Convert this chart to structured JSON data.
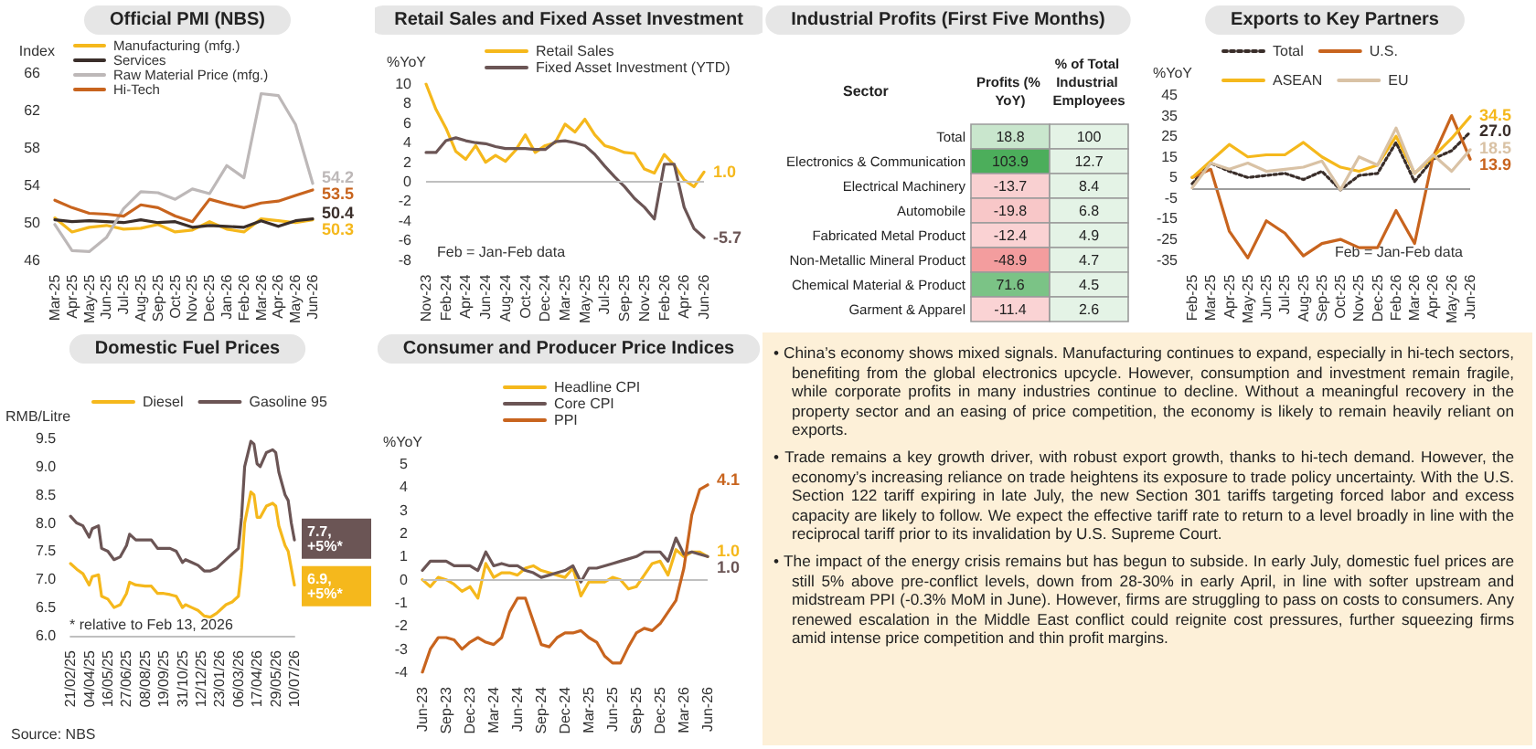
{
  "chart_data": [
    {
      "type": "line",
      "title": "Official PMI (NBS)",
      "ylabel": "Index",
      "legend": "top left",
      "marker": "none",
      "categories": [
        "Mar-25",
        "Apr-25",
        "May-25",
        "Jun-25",
        "Jul-25",
        "Aug-25",
        "Sep-25",
        "Oct-25",
        "Nov-25",
        "Dec-25",
        "Jan-26",
        "Feb-26",
        "Mar-26",
        "Apr-26",
        "May-26",
        "Jun-26"
      ],
      "ylim": [
        46,
        66
      ],
      "yticks": [
        46,
        50,
        54,
        58,
        62,
        66
      ],
      "series": [
        {
          "name": "Manufacturing (mfg.)",
          "color": "#f5b81c",
          "values": [
            50.5,
            49.0,
            49.5,
            49.7,
            49.3,
            49.4,
            49.8,
            49.0,
            49.2,
            50.1,
            49.3,
            49.0,
            50.4,
            50.2,
            50.0,
            50.3
          ],
          "value_labels": [
            null,
            null,
            null,
            null,
            null,
            null,
            null,
            null,
            null,
            null,
            null,
            null,
            null,
            null,
            null,
            "50.3"
          ]
        },
        {
          "name": "Services",
          "color": "#3a2e2a",
          "values": [
            50.3,
            50.1,
            50.2,
            50.1,
            50.0,
            50.3,
            50.0,
            50.1,
            49.5,
            49.7,
            49.6,
            49.5,
            50.2,
            49.6,
            50.2,
            50.4
          ],
          "value_labels": [
            null,
            null,
            null,
            null,
            null,
            null,
            null,
            null,
            null,
            null,
            null,
            null,
            null,
            null,
            null,
            "50.4"
          ]
        },
        {
          "name": "Raw Material Price (mfg.)",
          "color": "#bdb8b8",
          "values": [
            49.8,
            47.0,
            46.9,
            48.4,
            51.5,
            53.3,
            53.2,
            52.5,
            53.6,
            53.1,
            56.1,
            54.8,
            63.8,
            63.6,
            60.5,
            54.2
          ],
          "value_labels": [
            null,
            null,
            null,
            null,
            null,
            null,
            null,
            null,
            null,
            null,
            null,
            null,
            null,
            null,
            null,
            "54.2"
          ]
        },
        {
          "name": "Hi-Tech",
          "color": "#c8641e",
          "values": [
            52.4,
            51.6,
            51.0,
            50.9,
            50.7,
            51.9,
            51.6,
            50.7,
            50.1,
            52.5,
            52.0,
            51.6,
            52.1,
            52.3,
            52.9,
            53.5
          ],
          "value_labels": [
            null,
            null,
            null,
            null,
            null,
            null,
            null,
            null,
            null,
            null,
            null,
            null,
            null,
            null,
            null,
            "53.5"
          ]
        }
      ]
    },
    {
      "type": "line",
      "title": "Retail Sales and Fixed Asset Investment",
      "ylabel": "%YoY",
      "legend": "top",
      "marker": "none",
      "categories": [
        "Nov-23",
        null,
        "Feb-24",
        null,
        "Apr-24",
        null,
        "Jun-24",
        null,
        "Aug-24",
        null,
        "Oct-24",
        null,
        "Dec-24",
        null,
        "Mar-25",
        null,
        "May-25",
        null,
        "Jul-25",
        null,
        "Sep-25",
        null,
        "Nov-25",
        null,
        "Feb-26",
        null,
        "Apr-26",
        null,
        "Jun-26"
      ],
      "ylim": [
        -8,
        10
      ],
      "yticks": [
        -8,
        -6,
        -4,
        -2,
        0,
        2,
        4,
        6,
        8,
        10
      ],
      "ref_lines": [
        {
          "axis": "y",
          "value": 0,
          "label": null,
          "color": "#bfbfbf"
        }
      ],
      "annotations": [
        "Feb = Jan-Feb data"
      ],
      "series": [
        {
          "name": "Retail Sales",
          "color": "#f5b81c",
          "values": [
            10.0,
            7.4,
            5.5,
            3.1,
            2.3,
            3.7,
            2.0,
            2.7,
            2.1,
            3.2,
            4.8,
            3.0,
            3.7,
            4.0,
            5.9,
            5.1,
            6.4,
            4.8,
            3.7,
            3.4,
            3.0,
            2.9,
            1.3,
            0.9,
            2.8,
            1.7,
            0.2,
            -0.5,
            1.0
          ],
          "value_labels": [
            null,
            null,
            null,
            null,
            null,
            null,
            null,
            null,
            null,
            null,
            null,
            null,
            null,
            null,
            null,
            null,
            null,
            null,
            null,
            null,
            null,
            null,
            null,
            null,
            null,
            null,
            null,
            null,
            "1.0"
          ]
        },
        {
          "name": "Fixed Asset Investment (YTD)",
          "color": "#6b5555",
          "values": [
            3.0,
            3.0,
            4.2,
            4.5,
            4.2,
            4.0,
            3.9,
            3.6,
            3.4,
            3.4,
            3.4,
            3.3,
            3.3,
            4.1,
            4.2,
            4.0,
            3.7,
            2.8,
            1.6,
            0.5,
            -0.5,
            -1.7,
            -2.6,
            -3.8,
            1.8,
            1.8,
            -2.6,
            -4.8,
            -5.7
          ],
          "value_labels": [
            null,
            null,
            null,
            null,
            null,
            null,
            null,
            null,
            null,
            null,
            null,
            null,
            null,
            null,
            null,
            null,
            null,
            null,
            null,
            null,
            null,
            null,
            null,
            null,
            null,
            null,
            null,
            null,
            "-5.7"
          ]
        }
      ]
    },
    {
      "type": "heatmap",
      "title": "Industrial Profits (First Five Months)",
      "ylabel": "Sector",
      "data_labels": true,
      "categories": [
        "Profits (% YoY)",
        "% of Total Industrial Employees"
      ],
      "y_categories": [
        "Total",
        "Electronics & Communication",
        "Electrical Machinery",
        "Automobile",
        "Fabricated Metal Product",
        "Non-Metallic Mineral Product",
        "Chemical Material & Product",
        "Garment & Apparel"
      ],
      "cells": [
        [
          18.8,
          100
        ],
        [
          103.9,
          12.7
        ],
        [
          -13.7,
          8.4
        ],
        [
          -19.8,
          6.8
        ],
        [
          -12.4,
          4.9
        ],
        [
          -48.9,
          4.7
        ],
        [
          71.6,
          4.5
        ],
        [
          -11.4,
          2.6
        ]
      ]
    },
    {
      "type": "line",
      "title": "Exports to Key Partners",
      "ylabel": "%YoY",
      "legend": "top",
      "marker": "none",
      "categories": [
        "Feb-25",
        "Mar-25",
        "Apr-25",
        "May-25",
        "Jun-25",
        "Jul-25",
        "Aug-25",
        "Sep-25",
        "Oct-25",
        "Nov-25",
        "Dec-25",
        "Feb-26",
        "Mar-26",
        "Apr-26",
        "May-26",
        "Jun-26"
      ],
      "ylim": [
        -35,
        45
      ],
      "yticks": [
        -35,
        -25,
        -15,
        -5,
        5,
        15,
        25,
        35,
        45
      ],
      "ref_lines": [
        {
          "axis": "y",
          "value": 0,
          "label": null,
          "color": "#9e9e9e"
        }
      ],
      "annotations": [
        "Feb = Jan-Feb data"
      ],
      "series": [
        {
          "name": "Total",
          "color": "#3a2e2a",
          "line_style": "dotted",
          "values": [
            2,
            12,
            8,
            5,
            6,
            7,
            4,
            8,
            -1,
            6,
            7,
            22,
            3,
            14,
            18,
            27.0
          ],
          "value_labels": [
            null,
            null,
            null,
            null,
            null,
            null,
            null,
            null,
            null,
            null,
            null,
            null,
            null,
            null,
            null,
            "27.0"
          ]
        },
        {
          "name": "U.S.",
          "color": "#c8641e",
          "values": [
            5,
            9,
            -21,
            -34,
            -16,
            -22,
            -33,
            -27,
            -25,
            -29,
            -29,
            -11,
            -27,
            15,
            35,
            13.9
          ],
          "value_labels": [
            null,
            null,
            null,
            null,
            null,
            null,
            null,
            null,
            null,
            null,
            null,
            null,
            null,
            null,
            null,
            "13.9"
          ]
        },
        {
          "name": "ASEAN",
          "color": "#f5b81c",
          "values": [
            5,
            13,
            21,
            15,
            16,
            16,
            22,
            15,
            10,
            8,
            11,
            25,
            7,
            15,
            24,
            34.5
          ],
          "value_labels": [
            null,
            null,
            null,
            null,
            null,
            null,
            null,
            null,
            null,
            null,
            null,
            null,
            null,
            null,
            null,
            "34.5"
          ]
        },
        {
          "name": "EU",
          "color": "#d9c2a5",
          "values": [
            0,
            12,
            9,
            12,
            8,
            9,
            10,
            13,
            -1,
            15,
            11,
            29,
            7,
            16,
            8,
            18.5
          ],
          "value_labels": [
            null,
            null,
            null,
            null,
            null,
            null,
            null,
            null,
            null,
            null,
            null,
            null,
            null,
            null,
            null,
            "18.5"
          ]
        }
      ]
    },
    {
      "type": "line",
      "title": "Domestic Fuel Prices",
      "ylabel": "RMB/Litre",
      "legend": "top",
      "marker": "none",
      "x": [
        "2025-02-21",
        "2025-03-07",
        "2025-03-21",
        "2025-04-04",
        "2025-04-11",
        "2025-04-25",
        "2025-05-02",
        "2025-05-16",
        "2025-05-30",
        "2025-06-13",
        "2025-06-27",
        "2025-07-04",
        "2025-07-18",
        "2025-08-08",
        "2025-08-22",
        "2025-09-05",
        "2025-09-19",
        "2025-10-03",
        "2025-10-17",
        "2025-10-31",
        "2025-11-07",
        "2025-11-21",
        "2025-12-05",
        "2025-12-19",
        "2026-01-02",
        "2026-01-16",
        "2026-01-23",
        "2026-02-06",
        "2026-02-20",
        "2026-03-06",
        "2026-03-13",
        "2026-03-20",
        "2026-04-03",
        "2026-04-10",
        "2026-04-17",
        "2026-04-24",
        "2026-05-08",
        "2026-05-22",
        "2026-05-29",
        "2026-06-05",
        "2026-06-19",
        "2026-06-26",
        "2026-07-03",
        "2026-07-10"
      ],
      "xlim": [
        "2025-02-21",
        "2026-07-10"
      ],
      "xticks": [
        {
          "value": "2025-02-21",
          "label": "21/02/25"
        },
        {
          "value": "2025-04-04",
          "label": "04/04/25"
        },
        {
          "value": "2025-05-16",
          "label": "16/05/25"
        },
        {
          "value": "2025-06-27",
          "label": "27/06/25"
        },
        {
          "value": "2025-08-08",
          "label": "08/08/25"
        },
        {
          "value": "2025-09-19",
          "label": "19/09/25"
        },
        {
          "value": "2025-10-31",
          "label": "31/10/25"
        },
        {
          "value": "2025-12-12",
          "label": "12/12/25"
        },
        {
          "value": "2026-01-23",
          "label": "23/01/26"
        },
        {
          "value": "2026-03-06",
          "label": "06/03/26"
        },
        {
          "value": "2026-04-17",
          "label": "17/04/26"
        },
        {
          "value": "2026-05-29",
          "label": "29/05/26"
        },
        {
          "value": "2026-07-10",
          "label": "10/07/26"
        }
      ],
      "ylim": [
        6,
        9.5
      ],
      "yticks": [
        {
          "value": 6,
          "label": "6.0"
        },
        6.5,
        {
          "value": 7,
          "label": "7.0"
        },
        7.5,
        {
          "value": 8,
          "label": "8.0"
        },
        8.5,
        {
          "value": 9,
          "label": "9.0"
        },
        9.5
      ],
      "annotations": [
        "* relative to Feb 13, 2026",
        "Source: NBS"
      ],
      "series": [
        {
          "name": "Diesel",
          "color": "#f5b81c",
          "values": [
            7.28,
            7.18,
            7.1,
            6.9,
            7.05,
            7.08,
            6.7,
            6.65,
            6.5,
            6.55,
            6.75,
            6.95,
            6.9,
            6.88,
            6.88,
            6.75,
            6.75,
            6.73,
            6.7,
            6.5,
            6.55,
            6.5,
            6.45,
            6.35,
            6.33,
            6.4,
            6.45,
            6.55,
            6.6,
            6.7,
            7.2,
            8.0,
            8.55,
            8.5,
            8.1,
            8.1,
            8.3,
            8.35,
            8.3,
            7.95,
            7.6,
            7.5,
            7.2,
            6.9
          ],
          "value_labels": [
            null,
            null,
            null,
            null,
            null,
            null,
            null,
            null,
            null,
            null,
            null,
            null,
            null,
            null,
            null,
            null,
            null,
            null,
            null,
            null,
            null,
            null,
            null,
            null,
            null,
            null,
            null,
            null,
            null,
            null,
            null,
            null,
            null,
            null,
            null,
            null,
            null,
            null,
            null,
            null,
            null,
            null,
            null,
            "6.9, +5%*"
          ]
        },
        {
          "name": "Gasoline 95",
          "color": "#6b5555",
          "values": [
            8.12,
            8.0,
            7.95,
            7.75,
            7.9,
            7.95,
            7.55,
            7.5,
            7.35,
            7.4,
            7.6,
            7.8,
            7.7,
            7.7,
            7.7,
            7.55,
            7.55,
            7.55,
            7.5,
            7.3,
            7.35,
            7.3,
            7.25,
            7.15,
            7.15,
            7.2,
            7.25,
            7.35,
            7.45,
            7.55,
            8.1,
            9.0,
            9.45,
            9.4,
            9.05,
            9.0,
            9.25,
            9.3,
            9.25,
            8.9,
            8.5,
            8.4,
            8.0,
            7.7
          ],
          "value_labels": [
            null,
            null,
            null,
            null,
            null,
            null,
            null,
            null,
            null,
            null,
            null,
            null,
            null,
            null,
            null,
            null,
            null,
            null,
            null,
            null,
            null,
            null,
            null,
            null,
            null,
            null,
            null,
            null,
            null,
            null,
            null,
            null,
            null,
            null,
            null,
            null,
            null,
            null,
            null,
            null,
            null,
            null,
            null,
            "7.7, +5%*"
          ]
        }
      ]
    },
    {
      "type": "line",
      "title": "Consumer and Producer Price Indices",
      "ylabel": "%YoY",
      "legend": "top",
      "marker": "none",
      "categories": [
        "Jun-23",
        null,
        null,
        "Sep-23",
        null,
        null,
        "Dec-23",
        null,
        null,
        "Mar-24",
        null,
        null,
        "Jun-24",
        null,
        null,
        "Sep-24",
        null,
        null,
        "Dec-24",
        null,
        null,
        "Mar-25",
        null,
        null,
        "Jun-25",
        null,
        null,
        "Sep-25",
        null,
        null,
        "Dec-25",
        null,
        null,
        "Mar-26",
        null,
        null,
        "Jun-26"
      ],
      "ylim": [
        -4,
        5
      ],
      "yticks": [
        -4,
        -3,
        -2,
        -1,
        0,
        1,
        2,
        3,
        4,
        5
      ],
      "ref_lines": [
        {
          "axis": "y",
          "value": 0,
          "label": null,
          "color": "#bfbfbf"
        }
      ],
      "series": [
        {
          "name": "Headline CPI",
          "color": "#f5b81c",
          "values": [
            0.0,
            -0.3,
            0.1,
            0.0,
            -0.2,
            -0.5,
            -0.3,
            -0.8,
            0.7,
            0.1,
            0.3,
            0.3,
            0.2,
            0.5,
            0.6,
            0.4,
            0.3,
            0.2,
            0.1,
            0.5,
            -0.7,
            -0.1,
            -0.1,
            -0.1,
            0.1,
            0.0,
            -0.4,
            -0.3,
            0.2,
            0.7,
            0.8,
            0.2,
            1.3,
            1.0,
            1.2,
            1.2,
            1.0
          ],
          "value_labels": [
            null,
            null,
            null,
            null,
            null,
            null,
            null,
            null,
            null,
            null,
            null,
            null,
            null,
            null,
            null,
            null,
            null,
            null,
            null,
            null,
            null,
            null,
            null,
            null,
            null,
            null,
            null,
            null,
            null,
            null,
            null,
            null,
            null,
            null,
            null,
            null,
            "1.0"
          ]
        },
        {
          "name": "Core CPI",
          "color": "#6b5555",
          "values": [
            0.4,
            0.8,
            0.8,
            0.8,
            0.6,
            0.6,
            0.6,
            0.4,
            1.2,
            0.6,
            0.7,
            0.6,
            0.6,
            0.4,
            0.3,
            0.1,
            0.2,
            0.3,
            0.4,
            0.6,
            -0.1,
            0.5,
            0.5,
            0.6,
            0.7,
            0.8,
            0.9,
            1.0,
            1.2,
            1.2,
            1.2,
            0.8,
            1.8,
            1.1,
            1.2,
            1.1,
            1.0
          ],
          "value_labels": [
            null,
            null,
            null,
            null,
            null,
            null,
            null,
            null,
            null,
            null,
            null,
            null,
            null,
            null,
            null,
            null,
            null,
            null,
            null,
            null,
            null,
            null,
            null,
            null,
            null,
            null,
            null,
            null,
            null,
            null,
            null,
            null,
            null,
            null,
            null,
            null,
            "1.0"
          ]
        },
        {
          "name": "PPI",
          "color": "#c8641e",
          "values": [
            -4.0,
            -3.0,
            -2.5,
            -2.5,
            -2.6,
            -3.0,
            -2.7,
            -2.5,
            -2.7,
            -2.8,
            -2.5,
            -1.4,
            -0.8,
            -0.8,
            -1.8,
            -2.8,
            -2.9,
            -2.5,
            -2.3,
            -2.3,
            -2.2,
            -2.5,
            -2.7,
            -3.3,
            -3.6,
            -3.6,
            -2.9,
            -2.3,
            -2.1,
            -2.2,
            -1.9,
            -1.4,
            -0.9,
            0.5,
            2.8,
            3.9,
            4.1
          ],
          "value_labels": [
            null,
            null,
            null,
            null,
            null,
            null,
            null,
            null,
            null,
            null,
            null,
            null,
            null,
            null,
            null,
            null,
            null,
            null,
            null,
            null,
            null,
            null,
            null,
            null,
            null,
            null,
            null,
            null,
            null,
            null,
            null,
            null,
            null,
            null,
            null,
            null,
            "4.1"
          ]
        }
      ]
    },
    {
      "type": "other",
      "annotations": [
        "• China’s economy shows mixed signals. Manufacturing continues to expand, especially in hi-tech sectors, benefiting from the global electronics upcycle. However, consumption and investment remain fragile, while corporate profits in many industries continue to decline. Without a meaningful recovery in the property sector and an easing of price competition, the economy is likely to remain heavily reliant on exports.",
        "• Trade remains a key growth driver, with robust export growth, thanks to hi-tech demand. However, the economy’s increasing reliance on trade heightens its exposure to trade policy uncertainty. With the U.S. Section 122 tariff expiring in late July, the new Section 301 tariffs targeting forced labor and excess capacity are likely to follow. We expect the effective tariff rate to return to a level broadly in line with the reciprocal tariff prior to its invalidation by U.S. Supreme Court.",
        "• The impact of the energy crisis remains but has begun to subside. In early July, domestic fuel prices are still 5% above pre-conflict levels, down from 28-30% in early April, in line with softer upstream and midstream PPI (-0.3% MoM in June). However, firms are struggling to pass on costs to consumers. Any renewed escalation in the Middle East conflict could reignite cost pressures, further squeezing firms amid intense price competition and thin profit margins."
      ]
    }
  ]
}
